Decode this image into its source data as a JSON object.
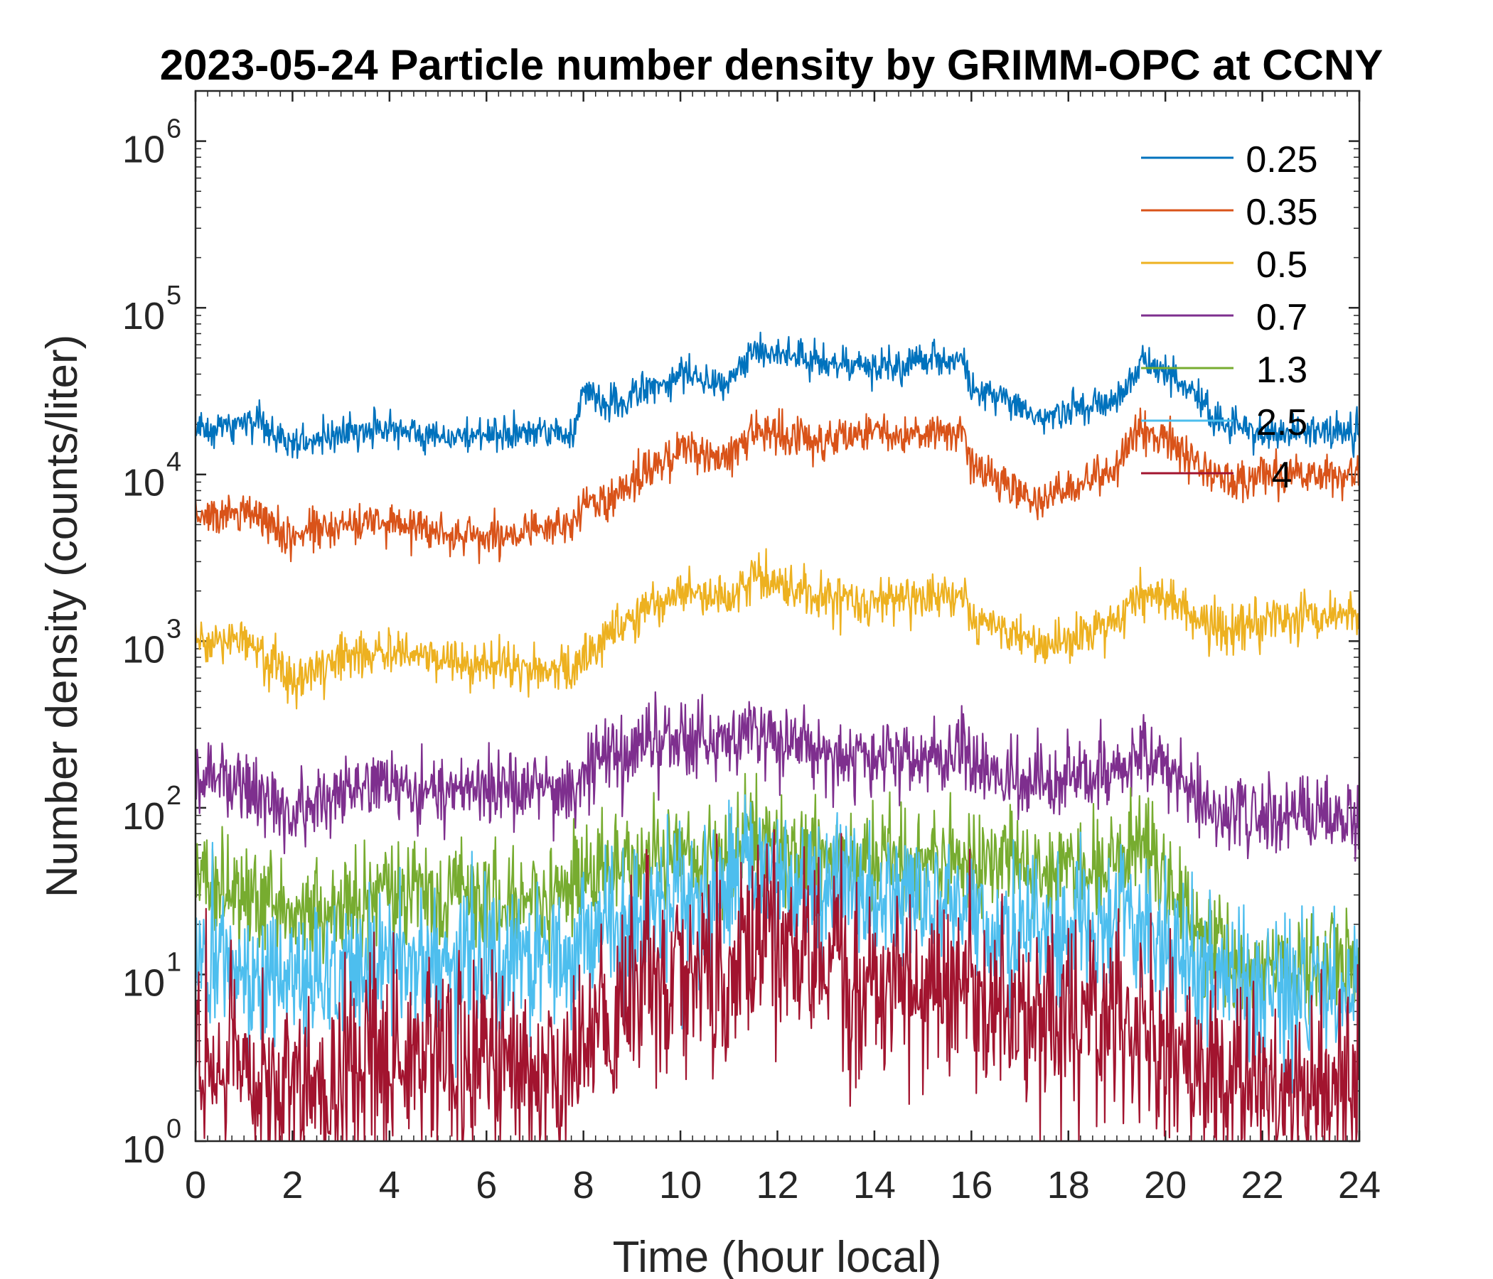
{
  "chart_data": {
    "type": "line",
    "title": "2023-05-24 Particle number density by GRIMM-OPC at CCNY",
    "xlabel": "Time (hour local)",
    "ylabel": "Number density (counts/liter)",
    "xlim": [
      0,
      24
    ],
    "ylim": [
      1,
      2000000
    ],
    "yscale": "log",
    "xticks": [
      0,
      2,
      4,
      6,
      8,
      10,
      12,
      14,
      16,
      18,
      20,
      22,
      24
    ],
    "xtick_labels": [
      "0",
      "2",
      "4",
      "6",
      "8",
      "10",
      "12",
      "14",
      "16",
      "18",
      "20",
      "22",
      "24"
    ],
    "yticks": [
      1,
      10,
      100,
      1000,
      10000,
      100000,
      1000000
    ],
    "ytick_labels": [
      {
        "base": "10",
        "exp": "0"
      },
      {
        "base": "10",
        "exp": "1"
      },
      {
        "base": "10",
        "exp": "2"
      },
      {
        "base": "10",
        "exp": "3"
      },
      {
        "base": "10",
        "exp": "4"
      },
      {
        "base": "10",
        "exp": "5"
      },
      {
        "base": "10",
        "exp": "6"
      }
    ],
    "legend_position": "top-right",
    "x": [
      0,
      1,
      2,
      3,
      4,
      5,
      6,
      7,
      7.8,
      8,
      8.5,
      9,
      10,
      11,
      11.5,
      12,
      13,
      14,
      15,
      15.8,
      16,
      17,
      17.5,
      18,
      19,
      19.5,
      20,
      20.5,
      21,
      21.5,
      22,
      23,
      24
    ],
    "series": [
      {
        "name": "0.25",
        "color": "#0072BD",
        "noise": 0.05,
        "values": [
          18000,
          21000,
          15500,
          17500,
          19000,
          17000,
          17000,
          18000,
          17500,
          32000,
          25000,
          30000,
          40000,
          36000,
          58000,
          54000,
          47000,
          43000,
          48000,
          50000,
          32000,
          25000,
          21000,
          24000,
          27000,
          48000,
          40000,
          33000,
          22000,
          19000,
          18000,
          18000,
          18000
        ]
      },
      {
        "name": "0.35",
        "color": "#D95319",
        "noise": 0.06,
        "values": [
          5500,
          6200,
          4200,
          5000,
          5200,
          4500,
          4200,
          4500,
          4800,
          7500,
          6500,
          9500,
          14000,
          12500,
          18000,
          17000,
          16000,
          17500,
          18000,
          19500,
          11000,
          8000,
          6800,
          7800,
          11000,
          21000,
          17000,
          13000,
          9500,
          9000,
          9700,
          10000,
          10000
        ]
      },
      {
        "name": "0.5",
        "color": "#EDB120",
        "noise": 0.07,
        "values": [
          950,
          1050,
          580,
          820,
          900,
          750,
          700,
          700,
          650,
          850,
          1100,
          1400,
          2000,
          1700,
          2500,
          2200,
          1800,
          1700,
          1900,
          2000,
          1350,
          1050,
          900,
          1000,
          1300,
          2000,
          1800,
          1500,
          1150,
          1200,
          1300,
          1400,
          1400
        ]
      },
      {
        "name": "0.7",
        "color": "#7E2F8E",
        "noise": 0.11,
        "values": [
          150,
          140,
          90,
          130,
          140,
          130,
          130,
          130,
          125,
          170,
          200,
          220,
          260,
          230,
          300,
          250,
          210,
          200,
          200,
          210,
          190,
          160,
          140,
          140,
          180,
          210,
          180,
          120,
          90,
          90,
          90,
          90,
          90
        ]
      },
      {
        "name": "1.3",
        "color": "#77AC30",
        "noise": 0.16,
        "values": [
          35,
          32,
          25,
          26,
          30,
          28,
          28,
          30,
          30,
          35,
          40,
          45,
          55,
          50,
          75,
          60,
          55,
          50,
          50,
          55,
          50,
          45,
          40,
          40,
          45,
          55,
          40,
          22,
          15,
          12,
          12,
          12,
          12
        ]
      },
      {
        "name": "2.5",
        "color": "#4DBEEE",
        "noise": 0.22,
        "values": [
          12,
          11,
          9,
          11,
          13,
          12,
          11,
          11,
          11,
          15,
          18,
          22,
          30,
          30,
          42,
          38,
          33,
          30,
          28,
          30,
          25,
          20,
          17,
          17,
          18,
          22,
          18,
          12,
          9,
          8,
          8,
          8,
          8
        ]
      },
      {
        "name": "4",
        "color": "#A2142F",
        "noise": 0.3,
        "values": [
          2.5,
          2.5,
          2,
          2.5,
          3,
          3,
          3,
          2.5,
          2.5,
          4,
          5,
          7,
          10,
          11,
          16,
          14,
          11,
          9,
          8,
          8,
          7,
          6,
          5,
          5,
          5,
          5,
          4,
          3,
          2.5,
          2,
          2,
          2,
          2
        ]
      }
    ]
  }
}
